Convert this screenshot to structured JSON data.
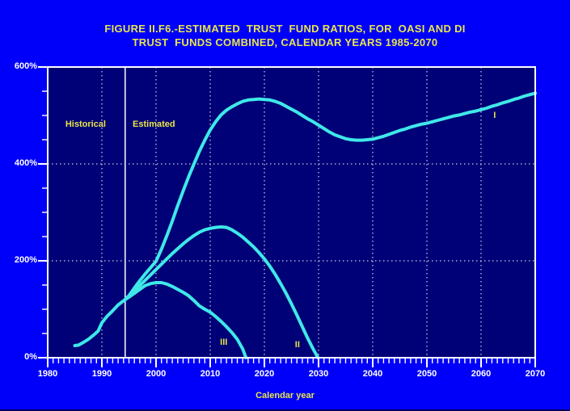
{
  "colors": {
    "page_background": "#0000FA",
    "plot_background": "#000077",
    "curve_cyan": "#3FE8E8",
    "grid_white": "#FFFFFF",
    "text_yellow": "#E9E54A",
    "text_white": "#FFFFFF"
  },
  "chart_data": {
    "type": "line",
    "title_lines": [
      "FIGURE II.F6.-ESTIMATED  TRUST  FUND RATIOS, FOR  OASI AND DI",
      "TRUST  FUNDS COMBINED, CALENDAR YEARS 1985-2070"
    ],
    "xlabel": "Calendar year",
    "ylabel": "",
    "xlim": [
      1980,
      2070
    ],
    "ylim": [
      0,
      600
    ],
    "x_major_ticks": [
      1980,
      1990,
      2000,
      2010,
      2020,
      2030,
      2040,
      2050,
      2060,
      2070
    ],
    "x_minor_tick_step_years": 1,
    "y_ticks": [
      {
        "value": 600,
        "label": "600%"
      },
      {
        "value": 400,
        "label": "400%"
      },
      {
        "value": 200,
        "label": "200%"
      },
      {
        "value": 0,
        "label": "0%"
      }
    ],
    "y_minor_tick_step": 50,
    "grid_vertical_years": [
      1990,
      2000,
      2010,
      2020,
      2030,
      2040,
      2050,
      2060
    ],
    "grid_horizontal_values": [
      200,
      400
    ],
    "estimate_boundary_year": 1994.3,
    "grid": true,
    "legend_position": "none",
    "annotations": [
      {
        "text": "Historical",
        "year": 1987.0,
        "value": 482
      },
      {
        "text": "Estimated",
        "year": 1999.6,
        "value": 482
      },
      {
        "text": "I",
        "year": 2062.5,
        "value": 500
      },
      {
        "text": "II",
        "year": 2026.1,
        "value": 27
      },
      {
        "text": "III",
        "year": 2012.5,
        "value": 31
      }
    ],
    "series": [
      {
        "name": "Historical",
        "points": [
          [
            1985,
            25
          ],
          [
            1985.7,
            26
          ],
          [
            1986.5,
            31
          ],
          [
            1987.5,
            38
          ],
          [
            1988.5,
            47
          ],
          [
            1989.3,
            55
          ],
          [
            1990,
            72
          ],
          [
            1991,
            86
          ],
          [
            1992,
            97
          ],
          [
            1993,
            109
          ],
          [
            1994.3,
            120
          ]
        ]
      },
      {
        "name": "Alternative I",
        "points": [
          [
            1994.3,
            120
          ],
          [
            1995,
            128
          ],
          [
            1996,
            144
          ],
          [
            1997,
            159
          ],
          [
            1998,
            173
          ],
          [
            1999,
            186
          ],
          [
            2000,
            199
          ],
          [
            2001,
            224
          ],
          [
            2002,
            252
          ],
          [
            2003,
            282
          ],
          [
            2004,
            314
          ],
          [
            2005,
            344
          ],
          [
            2006,
            373
          ],
          [
            2007,
            400
          ],
          [
            2008,
            426
          ],
          [
            2009,
            449
          ],
          [
            2010,
            470
          ],
          [
            2011,
            487
          ],
          [
            2012,
            501
          ],
          [
            2013,
            511
          ],
          [
            2014,
            518
          ],
          [
            2015,
            524
          ],
          [
            2016,
            529
          ],
          [
            2017,
            532
          ],
          [
            2018,
            533
          ],
          [
            2019,
            534
          ],
          [
            2020,
            533
          ],
          [
            2021,
            532
          ],
          [
            2022,
            529
          ],
          [
            2023,
            525
          ],
          [
            2024,
            519
          ],
          [
            2025,
            513
          ],
          [
            2026,
            507
          ],
          [
            2027,
            500
          ],
          [
            2028,
            493
          ],
          [
            2029,
            487
          ],
          [
            2030,
            480
          ],
          [
            2031,
            473
          ],
          [
            2032,
            466
          ],
          [
            2033,
            460
          ],
          [
            2034,
            456
          ],
          [
            2035,
            452
          ],
          [
            2036,
            450
          ],
          [
            2037,
            449
          ],
          [
            2038,
            449
          ],
          [
            2039,
            450
          ],
          [
            2040,
            451
          ],
          [
            2041,
            454
          ],
          [
            2042,
            457
          ],
          [
            2043,
            461
          ],
          [
            2044,
            465
          ],
          [
            2045,
            469
          ],
          [
            2046,
            472
          ],
          [
            2047,
            476
          ],
          [
            2048,
            479
          ],
          [
            2049,
            482
          ],
          [
            2050,
            484
          ],
          [
            2051,
            487
          ],
          [
            2052,
            490
          ],
          [
            2053,
            493
          ],
          [
            2054,
            496
          ],
          [
            2055,
            499
          ],
          [
            2056,
            501
          ],
          [
            2057,
            504
          ],
          [
            2058,
            507
          ],
          [
            2059,
            509
          ],
          [
            2060,
            512
          ],
          [
            2061,
            515
          ],
          [
            2062,
            519
          ],
          [
            2063,
            522
          ],
          [
            2064,
            526
          ],
          [
            2065,
            529
          ],
          [
            2066,
            533
          ],
          [
            2067,
            536
          ],
          [
            2068,
            540
          ],
          [
            2069,
            543
          ],
          [
            2070,
            546
          ]
        ]
      },
      {
        "name": "Alternative II",
        "points": [
          [
            1994.3,
            120
          ],
          [
            1995,
            126
          ],
          [
            1996,
            137
          ],
          [
            1997,
            149
          ],
          [
            1998,
            160
          ],
          [
            1999,
            171
          ],
          [
            2000,
            182
          ],
          [
            2001,
            193
          ],
          [
            2002,
            204
          ],
          [
            2003,
            215
          ],
          [
            2004,
            225
          ],
          [
            2005,
            235
          ],
          [
            2006,
            244
          ],
          [
            2007,
            252
          ],
          [
            2008,
            259
          ],
          [
            2009,
            264
          ],
          [
            2010,
            267
          ],
          [
            2011,
            269
          ],
          [
            2012,
            270
          ],
          [
            2013,
            269
          ],
          [
            2014,
            264
          ],
          [
            2015,
            257
          ],
          [
            2016,
            249
          ],
          [
            2017,
            239
          ],
          [
            2018,
            229
          ],
          [
            2019,
            217
          ],
          [
            2020,
            204
          ],
          [
            2021,
            189
          ],
          [
            2022,
            172
          ],
          [
            2023,
            153
          ],
          [
            2024,
            133
          ],
          [
            2025,
            111
          ],
          [
            2026,
            88
          ],
          [
            2027,
            64
          ],
          [
            2028,
            40
          ],
          [
            2029,
            18
          ],
          [
            2029.9,
            0
          ]
        ]
      },
      {
        "name": "Alternative III",
        "points": [
          [
            1994.3,
            120
          ],
          [
            1995,
            125
          ],
          [
            1996,
            133
          ],
          [
            1997,
            141
          ],
          [
            1998,
            149
          ],
          [
            1999,
            153
          ],
          [
            2000,
            155
          ],
          [
            2001,
            155
          ],
          [
            2002,
            152
          ],
          [
            2003,
            147
          ],
          [
            2004,
            141
          ],
          [
            2005,
            135
          ],
          [
            2006,
            128
          ],
          [
            2007,
            118
          ],
          [
            2008,
            107
          ],
          [
            2009,
            100
          ],
          [
            2010,
            94
          ],
          [
            2011,
            85
          ],
          [
            2012,
            75
          ],
          [
            2013,
            64
          ],
          [
            2014,
            52
          ],
          [
            2015,
            38
          ],
          [
            2016,
            18
          ],
          [
            2016.6,
            0
          ]
        ]
      }
    ]
  }
}
